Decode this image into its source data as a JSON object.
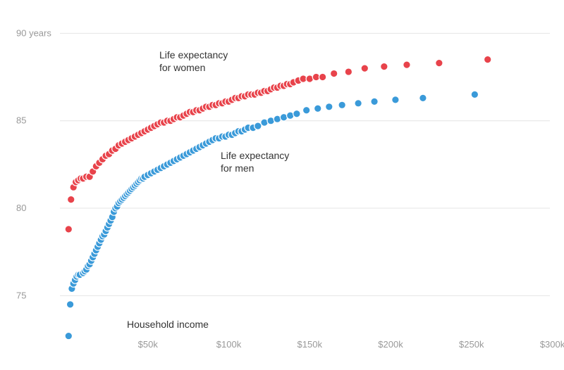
{
  "chart_data": {
    "type": "scatter",
    "title": "",
    "xlabel": "Household income",
    "ylabel": "",
    "xlim": [
      0,
      305000
    ],
    "ylim": [
      72.2,
      91.1
    ],
    "grid": "horizontal",
    "x_ticks": [
      {
        "value": 50000,
        "label": "$50k"
      },
      {
        "value": 100000,
        "label": "$100k"
      },
      {
        "value": 150000,
        "label": "$150k"
      },
      {
        "value": 200000,
        "label": "$200k"
      },
      {
        "value": 250000,
        "label": "$250k"
      },
      {
        "value": 300000,
        "label": "$300k"
      }
    ],
    "y_ticks": [
      {
        "value": 90,
        "label": "90 years"
      },
      {
        "value": 85,
        "label": "85"
      },
      {
        "value": 80,
        "label": "80"
      },
      {
        "value": 75,
        "label": "75"
      }
    ],
    "series": [
      {
        "name": "Life expectancy for women",
        "color": "#e8434b",
        "label_lines": [
          "Life expectancy",
          "for women"
        ],
        "points": [
          [
            1000,
            78.8
          ],
          [
            2500,
            80.5
          ],
          [
            4000,
            81.2
          ],
          [
            5500,
            81.5
          ],
          [
            7000,
            81.6
          ],
          [
            8500,
            81.7
          ],
          [
            10000,
            81.7
          ],
          [
            12000,
            81.8
          ],
          [
            14000,
            81.8
          ],
          [
            16000,
            82.1
          ],
          [
            18000,
            82.4
          ],
          [
            20000,
            82.6
          ],
          [
            22000,
            82.8
          ],
          [
            24000,
            83.0
          ],
          [
            26000,
            83.1
          ],
          [
            28000,
            83.3
          ],
          [
            30000,
            83.4
          ],
          [
            32000,
            83.6
          ],
          [
            34000,
            83.7
          ],
          [
            36000,
            83.8
          ],
          [
            38000,
            83.9
          ],
          [
            40000,
            84.0
          ],
          [
            42000,
            84.1
          ],
          [
            44000,
            84.2
          ],
          [
            46000,
            84.3
          ],
          [
            48000,
            84.4
          ],
          [
            50000,
            84.5
          ],
          [
            52000,
            84.6
          ],
          [
            54000,
            84.7
          ],
          [
            56000,
            84.8
          ],
          [
            58000,
            84.9
          ],
          [
            60000,
            84.9
          ],
          [
            62000,
            85.0
          ],
          [
            64000,
            85.0
          ],
          [
            66000,
            85.1
          ],
          [
            68000,
            85.2
          ],
          [
            70000,
            85.2
          ],
          [
            72000,
            85.3
          ],
          [
            74000,
            85.4
          ],
          [
            76000,
            85.5
          ],
          [
            78000,
            85.5
          ],
          [
            80000,
            85.6
          ],
          [
            82000,
            85.6
          ],
          [
            84000,
            85.7
          ],
          [
            86000,
            85.8
          ],
          [
            88000,
            85.8
          ],
          [
            90000,
            85.9
          ],
          [
            92000,
            85.9
          ],
          [
            94000,
            86.0
          ],
          [
            96000,
            86.0
          ],
          [
            98000,
            86.1
          ],
          [
            100000,
            86.1
          ],
          [
            102000,
            86.2
          ],
          [
            104000,
            86.3
          ],
          [
            106000,
            86.3
          ],
          [
            108000,
            86.4
          ],
          [
            110000,
            86.4
          ],
          [
            112000,
            86.5
          ],
          [
            114000,
            86.5
          ],
          [
            116000,
            86.5
          ],
          [
            118000,
            86.6
          ],
          [
            120000,
            86.6
          ],
          [
            122000,
            86.7
          ],
          [
            124000,
            86.7
          ],
          [
            126000,
            86.8
          ],
          [
            128000,
            86.9
          ],
          [
            130000,
            86.9
          ],
          [
            132000,
            87.0
          ],
          [
            134000,
            87.0
          ],
          [
            136000,
            87.1
          ],
          [
            138000,
            87.1
          ],
          [
            140000,
            87.2
          ],
          [
            143000,
            87.3
          ],
          [
            146000,
            87.4
          ],
          [
            150000,
            87.4
          ],
          [
            154000,
            87.5
          ],
          [
            158000,
            87.5
          ],
          [
            165000,
            87.7
          ],
          [
            174000,
            87.8
          ],
          [
            184000,
            88.0
          ],
          [
            196000,
            88.1
          ],
          [
            210000,
            88.2
          ],
          [
            230000,
            88.3
          ],
          [
            260000,
            88.5
          ]
        ]
      },
      {
        "name": "Life expectancy for men",
        "color": "#3a9ad9",
        "label_lines": [
          "Life expectancy",
          "for men"
        ],
        "points": [
          [
            1000,
            72.7
          ],
          [
            2000,
            74.5
          ],
          [
            3000,
            75.4
          ],
          [
            4000,
            75.7
          ],
          [
            5000,
            75.9
          ],
          [
            6000,
            76.1
          ],
          [
            7000,
            76.2
          ],
          [
            8000,
            76.2
          ],
          [
            10000,
            76.3
          ],
          [
            11000,
            76.4
          ],
          [
            12000,
            76.5
          ],
          [
            13000,
            76.7
          ],
          [
            14000,
            76.8
          ],
          [
            15000,
            77.0
          ],
          [
            16000,
            77.2
          ],
          [
            17000,
            77.4
          ],
          [
            18000,
            77.6
          ],
          [
            19000,
            77.8
          ],
          [
            20000,
            78.0
          ],
          [
            21000,
            78.2
          ],
          [
            22000,
            78.4
          ],
          [
            23000,
            78.5
          ],
          [
            24000,
            78.7
          ],
          [
            25000,
            78.9
          ],
          [
            26000,
            79.1
          ],
          [
            27000,
            79.3
          ],
          [
            28000,
            79.5
          ],
          [
            29000,
            79.8
          ],
          [
            30000,
            80.0
          ],
          [
            31000,
            80.1
          ],
          [
            32000,
            80.3
          ],
          [
            33000,
            80.4
          ],
          [
            34000,
            80.5
          ],
          [
            35000,
            80.6
          ],
          [
            36000,
            80.7
          ],
          [
            37000,
            80.8
          ],
          [
            38000,
            80.9
          ],
          [
            39000,
            81.0
          ],
          [
            40000,
            81.1
          ],
          [
            41000,
            81.2
          ],
          [
            42000,
            81.3
          ],
          [
            43000,
            81.4
          ],
          [
            44000,
            81.5
          ],
          [
            45000,
            81.6
          ],
          [
            46000,
            81.7
          ],
          [
            47000,
            81.7
          ],
          [
            48000,
            81.8
          ],
          [
            50000,
            81.9
          ],
          [
            52000,
            82.0
          ],
          [
            54000,
            82.1
          ],
          [
            56000,
            82.2
          ],
          [
            58000,
            82.3
          ],
          [
            60000,
            82.4
          ],
          [
            62000,
            82.5
          ],
          [
            64000,
            82.6
          ],
          [
            66000,
            82.7
          ],
          [
            68000,
            82.8
          ],
          [
            70000,
            82.9
          ],
          [
            72000,
            83.0
          ],
          [
            74000,
            83.1
          ],
          [
            76000,
            83.2
          ],
          [
            78000,
            83.3
          ],
          [
            80000,
            83.4
          ],
          [
            82000,
            83.5
          ],
          [
            84000,
            83.6
          ],
          [
            86000,
            83.7
          ],
          [
            88000,
            83.8
          ],
          [
            90000,
            83.9
          ],
          [
            92000,
            84.0
          ],
          [
            94000,
            84.0
          ],
          [
            96000,
            84.1
          ],
          [
            98000,
            84.1
          ],
          [
            100000,
            84.2
          ],
          [
            102000,
            84.2
          ],
          [
            104000,
            84.3
          ],
          [
            106000,
            84.4
          ],
          [
            108000,
            84.4
          ],
          [
            110000,
            84.5
          ],
          [
            112000,
            84.6
          ],
          [
            115000,
            84.6
          ],
          [
            118000,
            84.7
          ],
          [
            122000,
            84.9
          ],
          [
            126000,
            85.0
          ],
          [
            130000,
            85.1
          ],
          [
            134000,
            85.2
          ],
          [
            138000,
            85.3
          ],
          [
            142000,
            85.4
          ],
          [
            148000,
            85.6
          ],
          [
            155000,
            85.7
          ],
          [
            162000,
            85.8
          ],
          [
            170000,
            85.9
          ],
          [
            180000,
            86.0
          ],
          [
            190000,
            86.1
          ],
          [
            203000,
            86.2
          ],
          [
            220000,
            86.3
          ],
          [
            252000,
            86.5
          ]
        ]
      }
    ]
  }
}
